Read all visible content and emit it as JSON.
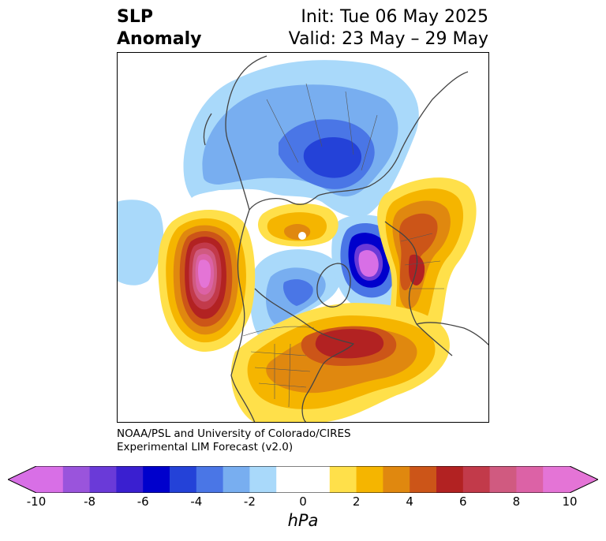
{
  "title": {
    "variable_line1": "SLP",
    "variable_line2": "Anomaly",
    "init": "Init: Tue 06 May 2025",
    "valid": "Valid: 23 May – 29 May"
  },
  "credit": {
    "line1": "NOAA/PSL and University of Colorado/CIRES",
    "line2": "Experimental LIM Forecast (v2.0)"
  },
  "colorbar": {
    "unit": "hPa",
    "ticks": [
      "-10",
      "-8",
      "-6",
      "-4",
      "-2",
      "0",
      "2",
      "4",
      "6",
      "8",
      "10"
    ],
    "colors": [
      "#d86fe6",
      "#9a54dc",
      "#6a3ad8",
      "#3a1fd0",
      "#0000cc",
      "#2442d8",
      "#4a76e6",
      "#78aef0",
      "#a9d9fa",
      "#ffffff",
      "#ffffff",
      "#ffe04a",
      "#f5b500",
      "#e0880f",
      "#cc5518",
      "#b22222",
      "#c23a4a",
      "#d05a80",
      "#dc62a6",
      "#e474d6"
    ],
    "extend_low_color": "#d86fe6",
    "extend_high_color": "#e474d6"
  },
  "map_colors": {
    "land_outline": "#444444",
    "neg1": "#a9d9fa",
    "neg2": "#78aef0",
    "neg3": "#4a76e6",
    "neg4": "#2442d8",
    "neg5": "#0000cc",
    "pos1": "#ffe04a",
    "pos2": "#f5b500",
    "pos3": "#e0880f",
    "pos4": "#cc5518",
    "pos5": "#b22222",
    "pos6": "#c23a4a",
    "pos7": "#d05a80",
    "pos8": "#dc62a6",
    "pos9": "#e474d6"
  }
}
